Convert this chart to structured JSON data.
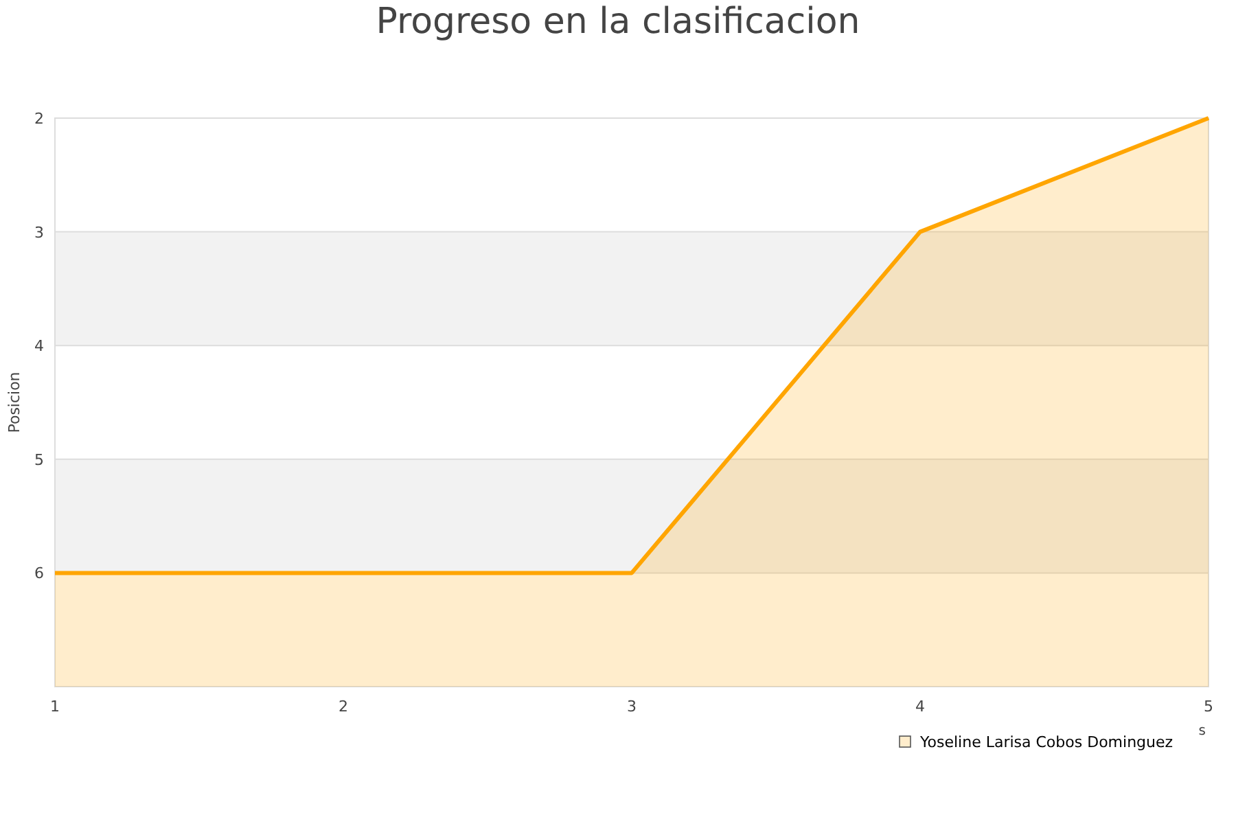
{
  "chart_data": {
    "type": "line",
    "title": "Progreso en la clasificacion",
    "ylabel": "Posicion",
    "xlabel": "s",
    "x": [
      1,
      2,
      3,
      4,
      5
    ],
    "series": [
      {
        "name": "Yoseline Larisa Cobos Dominguez",
        "color": "#ffa500",
        "values": [
          6,
          6,
          6,
          3,
          2
        ],
        "lower": [
          7,
          7,
          7,
          7,
          7
        ],
        "upper": [
          6,
          6,
          6,
          3,
          2
        ]
      }
    ],
    "xlim": [
      1,
      5
    ],
    "xticks": [
      1,
      2,
      3,
      4,
      5
    ],
    "ylim": [
      7,
      2
    ],
    "yticks": [
      2,
      3,
      4,
      5,
      6,
      {
        "value": 7,
        "label": null
      }
    ],
    "bands": [
      {
        "axis": "y",
        "from": 3,
        "to": 4,
        "color": "#f2f2f2"
      },
      {
        "axis": "y",
        "from": 5,
        "to": 6,
        "color": "#f2f2f2"
      }
    ],
    "grid": "y",
    "legend": "bottom right"
  }
}
